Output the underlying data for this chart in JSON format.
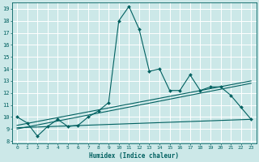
{
  "xlabel": "Humidex (Indice chaleur)",
  "bg_color": "#cce8e8",
  "grid_color": "#ffffff",
  "line_color": "#006060",
  "xlim": [
    -0.5,
    23.5
  ],
  "ylim": [
    7.8,
    19.5
  ],
  "yticks": [
    8,
    9,
    10,
    11,
    12,
    13,
    14,
    15,
    16,
    17,
    18,
    19
  ],
  "xticks": [
    0,
    1,
    2,
    3,
    4,
    5,
    6,
    7,
    8,
    9,
    10,
    11,
    12,
    13,
    14,
    15,
    16,
    17,
    18,
    19,
    20,
    21,
    22,
    23
  ],
  "series1_x": [
    0,
    1,
    2,
    3,
    4,
    5,
    6,
    7,
    8,
    9,
    10,
    11,
    12,
    13,
    14,
    15,
    16,
    17,
    18,
    19,
    20,
    21,
    22,
    23
  ],
  "series1_y": [
    10.0,
    9.5,
    8.4,
    9.2,
    9.8,
    9.2,
    9.3,
    10.0,
    10.5,
    11.2,
    18.0,
    19.2,
    17.3,
    13.8,
    14.0,
    12.2,
    12.2,
    13.5,
    12.2,
    12.5,
    12.5,
    11.8,
    10.8,
    9.8
  ],
  "series2_x": [
    0,
    23
  ],
  "series2_y": [
    9.1,
    9.8
  ],
  "series3_x": [
    0,
    23
  ],
  "series3_y": [
    9.0,
    12.8
  ],
  "series4_x": [
    0,
    23
  ],
  "series4_y": [
    9.3,
    13.0
  ]
}
